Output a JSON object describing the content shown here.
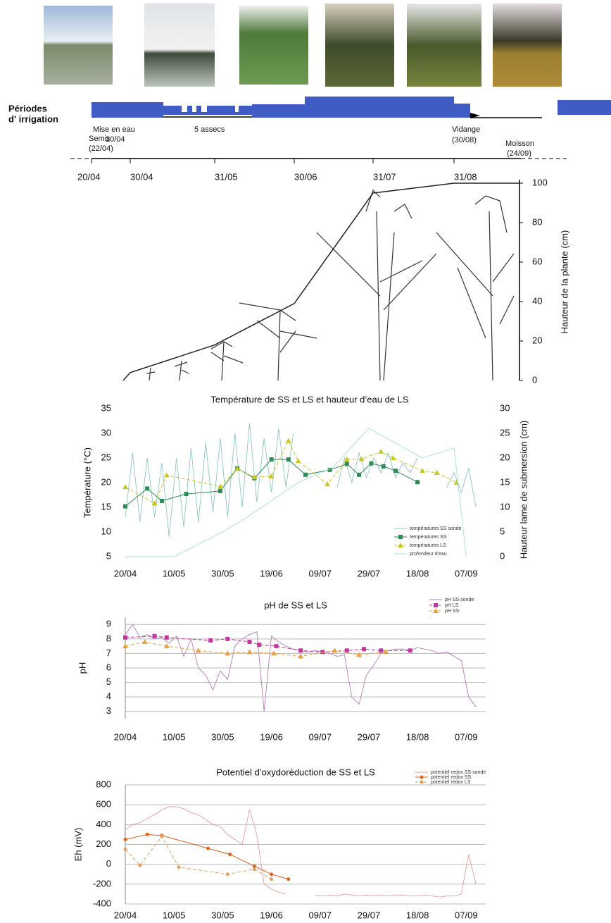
{
  "timeline": {
    "label_lines": [
      "Périodes",
      "d' irrigation"
    ],
    "annotations": [
      "Mise en eau",
      "20/04",
      "Semis",
      "(22/04)",
      "5 assecs",
      "Vidange",
      "(30/08)",
      "Moisson",
      "(24/09)"
    ]
  },
  "chart_data": [
    {
      "type": "line",
      "y_label": "Hauteur de la plante (cm)",
      "categories": [
        "20/04",
        "30/04",
        "31/05",
        "30/06",
        "31/07",
        "31/08"
      ],
      "values": [
        0,
        4,
        18,
        39,
        95,
        100
      ],
      "color": "#222222",
      "ylim": [
        0,
        100
      ],
      "yticks": [
        0,
        20,
        40,
        60,
        80,
        100
      ]
    },
    {
      "type": "line",
      "title": "Température de SS et LS et hauteur d’eau de LS",
      "y_label": "Température (°C)",
      "y2_label": "Hauteur lame de submersion (cm)",
      "xlim": [
        "20/04",
        "15/09"
      ],
      "xticks": [
        "20/04",
        "10/05",
        "30/05",
        "19/06",
        "09/07",
        "29/07",
        "18/08",
        "07/09"
      ],
      "ylim": [
        5,
        35
      ],
      "yticks": [
        5,
        10,
        15,
        20,
        25,
        30,
        35
      ],
      "y2lim": [
        0,
        30
      ],
      "y2ticks": [
        0,
        5,
        10,
        15,
        20,
        25,
        30
      ],
      "grid": false,
      "series": [
        {
          "name": "températures SS sonde",
          "color": "#8fc4c6",
          "x": [
            "20/04",
            "23/04",
            "26/04",
            "29/04",
            "02/05",
            "05/05",
            "08/05",
            "11/05",
            "14/05",
            "17/05",
            "20/05",
            "23/05",
            "26/05",
            "29/05",
            "01/06",
            "04/06",
            "07/06",
            "10/06",
            "13/06",
            "16/06",
            "19/06",
            "22/06",
            "25/06",
            "28/06",
            "01/07",
            "04/07",
            "07/07",
            "10/07",
            "13/07",
            "16/07",
            "19/07",
            "22/07",
            "25/07",
            "28/07",
            "31/07",
            "03/08",
            "06/08",
            "09/08",
            "12/08",
            "15/08",
            "18/08",
            "21/08",
            "24/08",
            "27/08",
            "30/08",
            "02/09",
            "05/09",
            "08/09",
            "11/09"
          ],
          "values": [
            13,
            26,
            12,
            25,
            13,
            24,
            9,
            25,
            11,
            27,
            12,
            28,
            14,
            29,
            13,
            30,
            15,
            32,
            16,
            29,
            18,
            31,
            19,
            30,
            null,
            null,
            null,
            null,
            null,
            19,
            25,
            20,
            26,
            21,
            25,
            22,
            26,
            21,
            24,
            22,
            25,
            null,
            null,
            null,
            19,
            22,
            18,
            23,
            15
          ]
        },
        {
          "name": "températures SS",
          "color": "#2e8b57",
          "marker": "square",
          "x": [
            "20/04",
            "29/04",
            "05/05",
            "15/05",
            "29/05",
            "05/06",
            "12/06",
            "19/06",
            "26/06",
            "03/07",
            "13/07",
            "20/07",
            "25/07",
            "30/07",
            "04/08",
            "09/08",
            "18/08"
          ],
          "values": [
            15.2,
            18.8,
            16.3,
            17.7,
            18.3,
            22.9,
            20.9,
            24.7,
            24.7,
            21.6,
            22.6,
            23.8,
            21.6,
            23.9,
            23.3,
            22.4,
            20.1
          ]
        },
        {
          "name": "températures LS",
          "color": "#c8c820",
          "marker": "triangle",
          "dashed": true,
          "x": [
            "20/04",
            "02/05",
            "07/05",
            "29/05",
            "05/06",
            "12/06",
            "19/06",
            "26/06",
            "30/06",
            "12/07",
            "20/07",
            "26/07",
            "03/08",
            "08/08",
            "20/08",
            "26/08",
            "03/09"
          ],
          "values": [
            19.1,
            15.8,
            21.5,
            19.2,
            22.8,
            21.1,
            21.3,
            28.5,
            24.4,
            19.7,
            24.7,
            24.8,
            26.3,
            25,
            22.4,
            22,
            20
          ]
        },
        {
          "name": "profondeur d'eau",
          "color": "#a6dcdc",
          "axis": "y2",
          "x": [
            "20/04",
            "10/05",
            "30/05",
            "09/06",
            "30/06",
            "14/07",
            "29/07",
            "20/08",
            "02/09",
            "07/09"
          ],
          "values": [
            0,
            0,
            5,
            8,
            15,
            18,
            26,
            20,
            22,
            0
          ]
        }
      ]
    },
    {
      "type": "line",
      "title": "pH de SS et LS",
      "y_label": "pH",
      "xlim": [
        "20/04",
        "15/09"
      ],
      "xticks": [
        "20/04",
        "10/05",
        "30/05",
        "19/06",
        "09/07",
        "29/07",
        "18/08",
        "07/09"
      ],
      "ylim": [
        2.5,
        9.5
      ],
      "yticks": [
        3,
        4,
        5,
        6,
        7,
        8,
        9
      ],
      "grid": true,
      "series": [
        {
          "name": "pH SS sonde",
          "color": "#b87ab8",
          "x": [
            "20/04",
            "23/04",
            "26/04",
            "29/04",
            "02/05",
            "05/05",
            "08/05",
            "11/05",
            "14/05",
            "17/05",
            "20/05",
            "23/05",
            "26/05",
            "29/05",
            "01/06",
            "04/06",
            "07/06",
            "10/06",
            "13/06",
            "16/06",
            "19/06",
            "22/06",
            "25/06",
            "28/06",
            "01/07",
            "04/07",
            "07/07",
            "10/07",
            "13/07",
            "16/07",
            "19/07",
            "22/07",
            "25/07",
            "28/07",
            "31/07",
            "03/08",
            "06/08",
            "09/08",
            "12/08",
            "15/08",
            "18/08",
            "21/08",
            "24/08",
            "27/08",
            "30/08",
            "02/09",
            "05/09",
            "08/09",
            "11/09"
          ],
          "values": [
            8.3,
            9,
            8.1,
            8.3,
            8,
            8.1,
            7.7,
            8.2,
            6.8,
            8,
            6,
            5.5,
            4.5,
            5.8,
            5.2,
            7.5,
            8,
            8.3,
            8.5,
            3,
            8.2,
            7.8,
            7.5,
            7.3,
            7.2,
            7.1,
            7.2,
            7.1,
            7,
            6.8,
            6.9,
            4,
            3.5,
            5.5,
            6.2,
            7,
            7.2,
            7.3,
            7.3,
            7.2,
            7.4,
            7.3,
            7.2,
            7,
            7.1,
            6.8,
            6.5,
            4,
            3.3
          ]
        },
        {
          "name": "pH LS",
          "color": "#c0389c",
          "marker": "square",
          "dashed": true,
          "x": [
            "20/04",
            "02/05",
            "07/05",
            "25/05",
            "01/06",
            "10/06",
            "14/06",
            "21/06",
            "01/07",
            "10/07",
            "20/07",
            "27/07",
            "03/08",
            "15/08"
          ],
          "values": [
            8.1,
            8.2,
            8.1,
            7.9,
            8,
            7.8,
            7.6,
            7.5,
            7.2,
            7.1,
            7.2,
            7.3,
            7.2,
            7.2
          ]
        },
        {
          "name": "pH SS",
          "color": "#e8a040",
          "marker": "triangle",
          "dashed": true,
          "x": [
            "20/04",
            "28/04",
            "07/05",
            "20/05",
            "01/06",
            "10/06",
            "20/06",
            "01/07",
            "15/07",
            "25/07",
            "05/08"
          ],
          "values": [
            7.5,
            7.8,
            7.5,
            7.2,
            7,
            7.1,
            7,
            6.8,
            7.2,
            6.9,
            7.1
          ]
        }
      ]
    },
    {
      "type": "line",
      "title": "Potentiel d’oxydoréduction de SS et LS",
      "y_label": "Eh (mV)",
      "xlim": [
        "20/04",
        "15/09"
      ],
      "xticks": [
        "20/04",
        "10/05",
        "30/05",
        "19/06",
        "09/07",
        "29/07",
        "18/08",
        "07/09"
      ],
      "ylim": [
        -400,
        800
      ],
      "yticks": [
        -400,
        -200,
        0,
        200,
        400,
        600,
        800
      ],
      "grid": true,
      "series": [
        {
          "name": "potentiel redox SS sonde",
          "color": "#e89a9a",
          "x": [
            "20/04",
            "23/04",
            "26/04",
            "29/04",
            "02/05",
            "05/05",
            "08/05",
            "11/05",
            "14/05",
            "17/05",
            "20/05",
            "23/05",
            "26/05",
            "29/05",
            "01/06",
            "04/06",
            "07/06",
            "10/06",
            "13/06",
            "16/06",
            "19/06",
            "22/06",
            "25/06",
            "28/06",
            "01/07",
            "04/07",
            "07/07",
            "10/07",
            "13/07",
            "16/07",
            "19/07",
            "22/07",
            "25/07",
            "28/07",
            "31/07",
            "03/08",
            "06/08",
            "09/08",
            "12/08",
            "15/08",
            "18/08",
            "21/08",
            "24/08",
            "27/08",
            "30/08",
            "02/09",
            "05/09",
            "08/09",
            "11/09"
          ],
          "values": [
            350,
            400,
            420,
            460,
            500,
            550,
            580,
            580,
            560,
            520,
            500,
            450,
            400,
            380,
            300,
            250,
            200,
            550,
            300,
            -200,
            -250,
            -280,
            -300,
            null,
            null,
            null,
            -310,
            -320,
            -310,
            -320,
            -300,
            -310,
            -320,
            -310,
            -320,
            -310,
            -320,
            -310,
            -310,
            -320,
            -320,
            -310,
            -320,
            -330,
            -320,
            -320,
            -300,
            100,
            -200
          ]
        },
        {
          "name": "potentiel redox SS",
          "color": "#e06020",
          "marker": "circle",
          "x": [
            "20/04",
            "29/04",
            "05/05",
            "24/05",
            "02/06",
            "12/06",
            "19/06",
            "26/06"
          ],
          "values": [
            250,
            300,
            290,
            160,
            100,
            -20,
            -100,
            -150
          ]
        },
        {
          "name": "potentiel redox LS",
          "color": "#e0a060",
          "marker": "circle",
          "dashed": true,
          "x": [
            "20/04",
            "26/04",
            "05/05",
            "12/05",
            "01/06",
            "12/06",
            "19/06"
          ],
          "values": [
            150,
            -10,
            280,
            -30,
            -100,
            -50,
            -150
          ]
        }
      ]
    }
  ]
}
